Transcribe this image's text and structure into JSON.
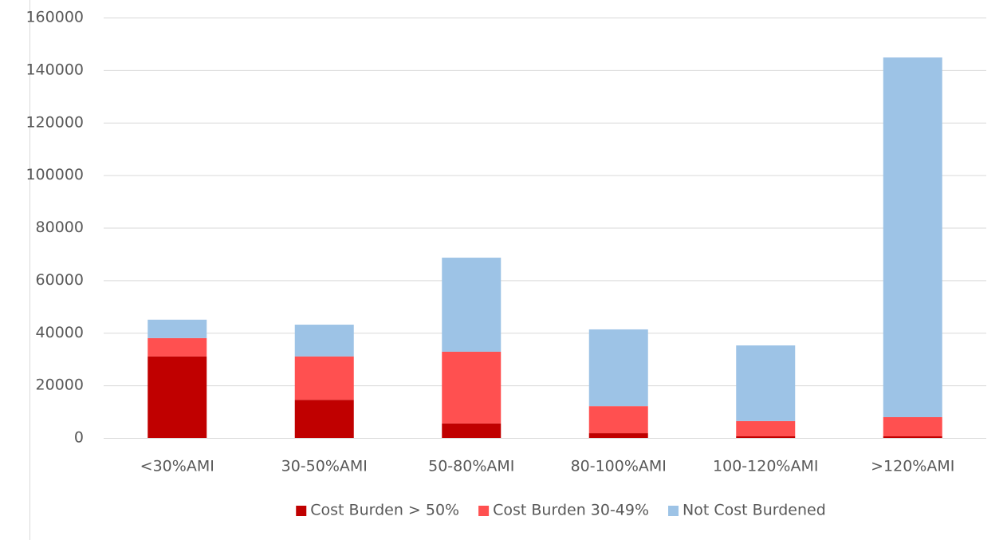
{
  "chart_data": {
    "type": "stacked_bar",
    "categories": [
      "<30%AMI",
      "30-50%AMI",
      "50-80%AMI",
      "80-100%AMI",
      "100-120%AMI",
      ">120%AMI"
    ],
    "series": [
      {
        "name": "Cost Burden > 50%",
        "color": "#c00000",
        "values": [
          31000,
          14500,
          5500,
          1800,
          600,
          600
        ]
      },
      {
        "name": "Cost Burden 30-49%",
        "color": "#ff5050",
        "values": [
          7000,
          16500,
          27300,
          10300,
          5800,
          7300
        ]
      },
      {
        "name": "Not Cost Burdened",
        "color": "#9dc3e6",
        "values": [
          7000,
          12100,
          35800,
          29200,
          28800,
          136900
        ]
      }
    ],
    "ylim": [
      0,
      160000
    ],
    "yticks": [
      0,
      20000,
      40000,
      60000,
      80000,
      100000,
      120000,
      140000,
      160000
    ],
    "grid": true,
    "legend": "bottom"
  }
}
